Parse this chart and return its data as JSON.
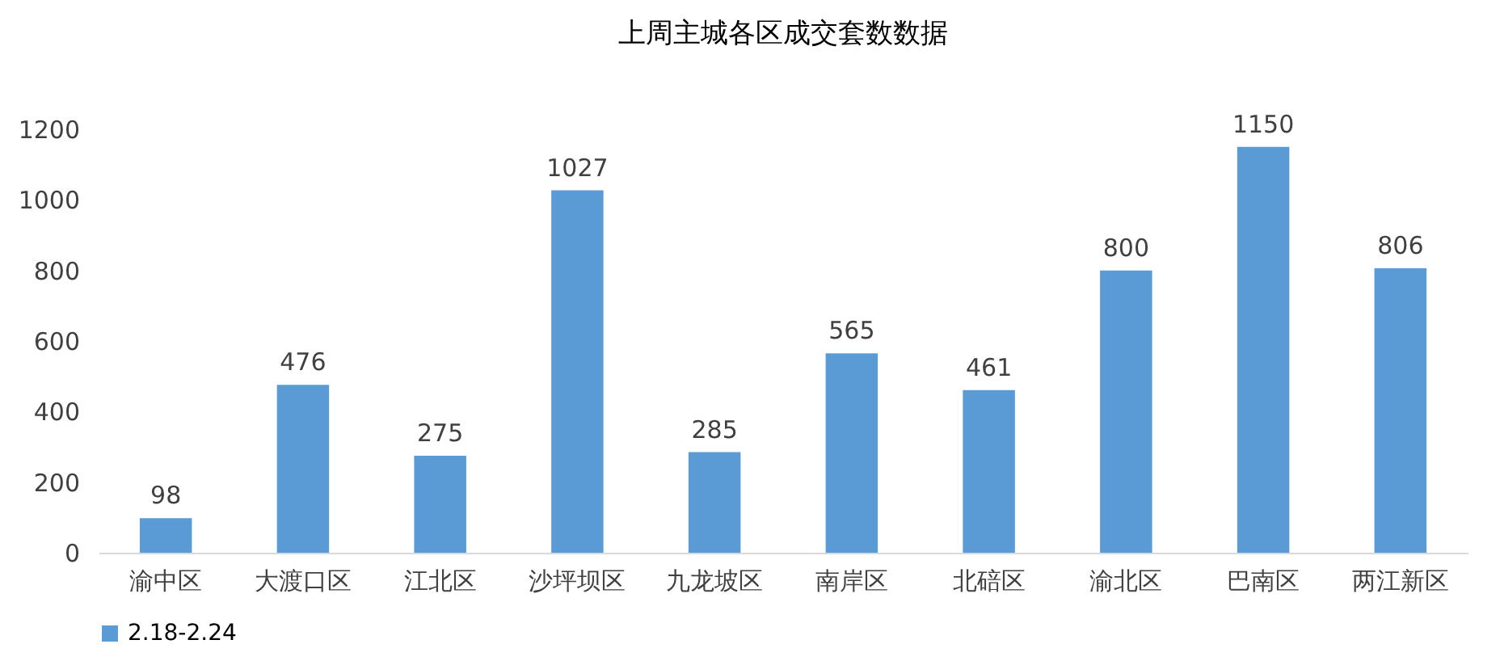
{
  "chart_data": {
    "type": "bar",
    "title": "上周主城各区成交套数数据",
    "categories": [
      "渝中区",
      "大渡口区",
      "江北区",
      "沙坪坝区",
      "九龙坡区",
      "南岸区",
      "北碚区",
      "渝北区",
      "巴南区",
      "两江新区"
    ],
    "series": [
      {
        "name": "2.18-2.24",
        "color": "#5b9bd5",
        "values": [
          98,
          476,
          275,
          1027,
          285,
          565,
          461,
          800,
          1150,
          806
        ]
      }
    ],
    "ylim": [
      0,
      1200
    ],
    "yticks": [
      0,
      200,
      400,
      600,
      800,
      1000,
      1200
    ],
    "grid": false,
    "data_labels": true,
    "legend": "bottom"
  }
}
